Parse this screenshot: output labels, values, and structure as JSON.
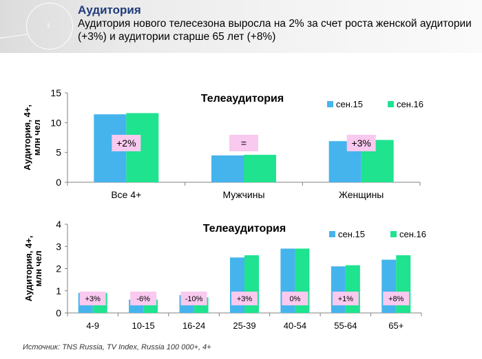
{
  "header": {
    "deco_number": "3",
    "title": "Аудитория",
    "subtitle": "Аудитория нового телесезона выросла на 2% за счет роста женской аудитории (+3%) и аудитории старше 65 лет (+8%)"
  },
  "colors": {
    "series1": "#45b4ec",
    "series2": "#1fe38f",
    "label_bg": "#f9c9ef"
  },
  "chart_data": [
    {
      "type": "bar",
      "title": "Телеаудитория",
      "ylabel": "Аудитория, 4+, млн чел",
      "ylim": [
        0,
        15
      ],
      "yticks": [
        "0",
        "5",
        "10",
        "15"
      ],
      "categories": [
        "Все 4+",
        "Мужчины",
        "Женщины"
      ],
      "series": [
        {
          "name": "сен.15",
          "values": [
            11.4,
            4.5,
            6.9
          ]
        },
        {
          "name": "сен.16",
          "values": [
            11.6,
            4.6,
            7.1
          ]
        }
      ],
      "annotations": [
        "+2%",
        "=",
        "+3%"
      ],
      "legend": "top-right",
      "grid": false
    },
    {
      "type": "bar",
      "title": "Телеаудитория",
      "ylabel": "Аудитория, 4+, млн чел",
      "ylim": [
        0,
        4
      ],
      "yticks": [
        "0",
        "1",
        "2",
        "3",
        "4"
      ],
      "categories": [
        "4-9",
        "10-15",
        "16-24",
        "25-39",
        "40-54",
        "55-64",
        "65+"
      ],
      "series": [
        {
          "name": "сен.15",
          "values": [
            0.9,
            0.6,
            0.8,
            2.5,
            2.9,
            2.1,
            2.4
          ]
        },
        {
          "name": "сен.16",
          "values": [
            0.9,
            0.6,
            0.7,
            2.6,
            2.9,
            2.15,
            2.6
          ]
        }
      ],
      "annotations": [
        "+3%",
        "-6%",
        "-10%",
        "+3%",
        "0%",
        "+1%",
        "+8%"
      ],
      "legend": "top-right",
      "grid": false
    }
  ],
  "source": "Источник: TNS Russia, TV Index, Russia 100 000+, 4+"
}
